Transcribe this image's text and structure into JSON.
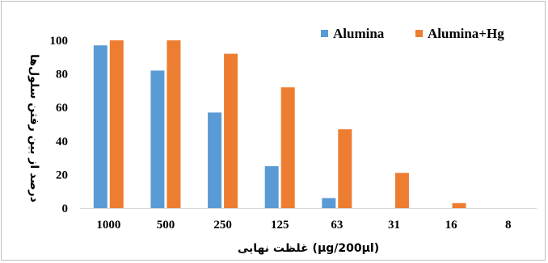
{
  "chart_data": {
    "type": "bar",
    "categories": [
      "1000",
      "500",
      "250",
      "125",
      "63",
      "31",
      "16",
      "8"
    ],
    "series": [
      {
        "name": "Alumina",
        "color": "#5B9BD5",
        "values": [
          97,
          82,
          57,
          25,
          6,
          0,
          0,
          0
        ]
      },
      {
        "name": "Alumina+Hg",
        "color": "#ED7D31",
        "values": [
          100,
          100,
          92,
          72,
          47,
          21,
          3,
          0
        ]
      }
    ],
    "title": "",
    "xlabel": "غلظت نهایی (µg/200µl)",
    "ylabel": "درصد از بین رفتن سلول‌ها",
    "ylim": [
      0,
      100
    ],
    "yticks": [
      "0",
      "20",
      "40",
      "60",
      "80",
      "100"
    ],
    "grid": false,
    "legend_position": "top-right"
  }
}
